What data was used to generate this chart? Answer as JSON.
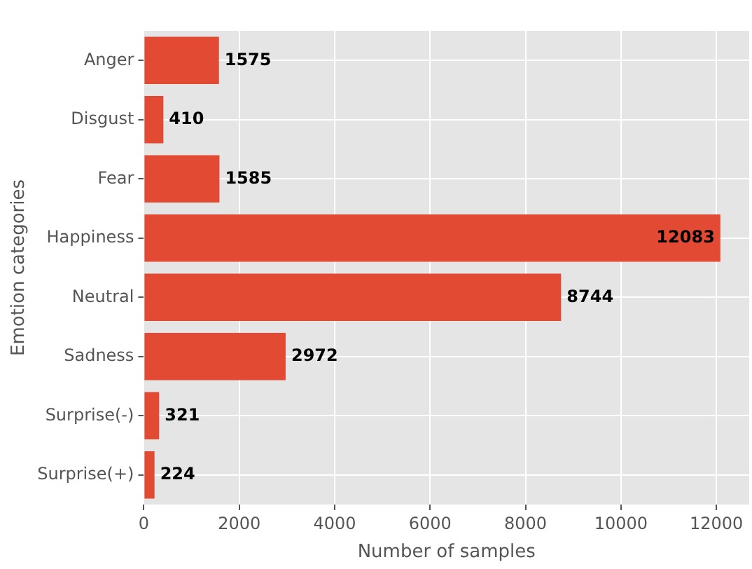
{
  "chart_data": {
    "type": "bar",
    "orientation": "horizontal",
    "xlabel": "Number of samples",
    "ylabel": "Emotion categories",
    "categories": [
      "Anger",
      "Disgust",
      "Fear",
      "Happiness",
      "Neutral",
      "Sadness",
      "Surprise(-)",
      "Surprise(+)"
    ],
    "values": [
      1575,
      410,
      1585,
      12083,
      8744,
      2972,
      321,
      224
    ],
    "color": "#e24a33",
    "xlim": [
      0,
      12687
    ],
    "xticks": [
      0,
      2000,
      4000,
      6000,
      8000,
      10000,
      12000
    ],
    "grid": true,
    "legend": false,
    "data_labels": true
  }
}
